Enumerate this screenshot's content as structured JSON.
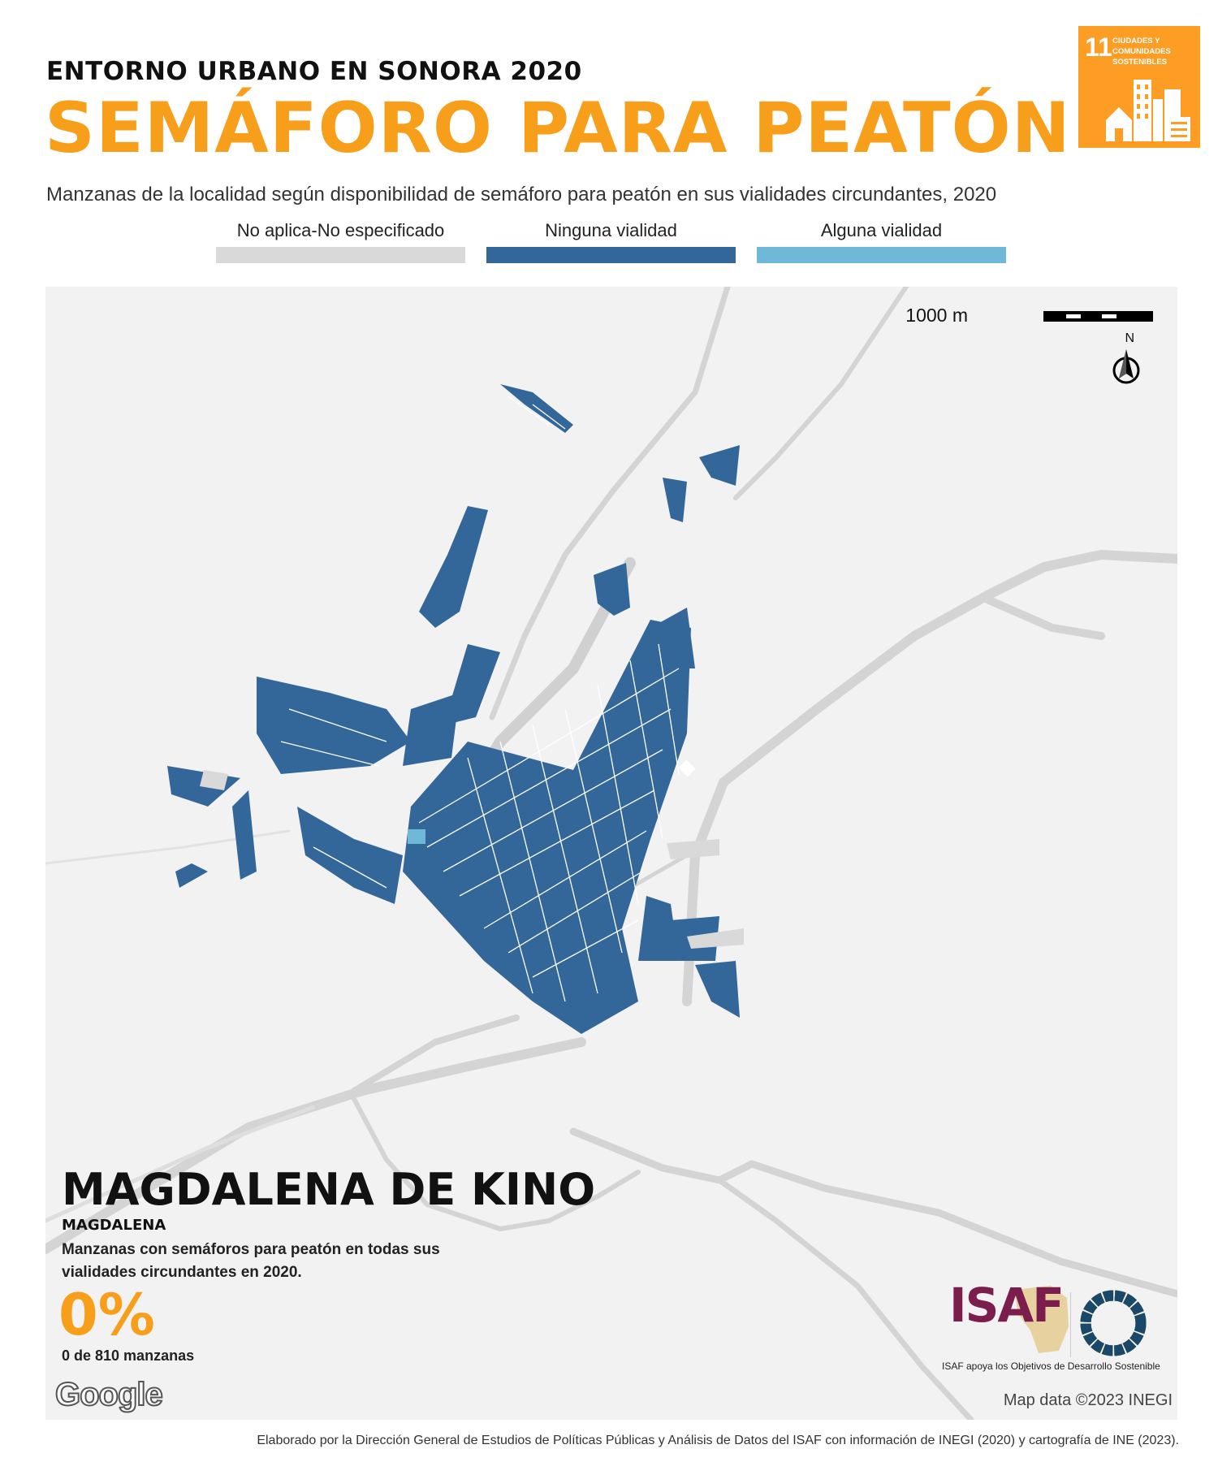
{
  "header": {
    "subtitle": "ENTORNO URBANO EN SONORA 2020",
    "title": "SEMÁFORO PARA PEATÓN"
  },
  "sdg_badge": {
    "number": "11",
    "label": "Ciudades y comunidades sostenibles",
    "color": "#fd9d24"
  },
  "description": "Manzanas de la localidad según disponibilidad de semáforo para peatón en sus vialidades circundantes, 2020",
  "legend": [
    {
      "label": "No aplica-No especificado",
      "color": "#d9d9d9"
    },
    {
      "label": "Ninguna vialidad",
      "color": "#336699"
    },
    {
      "label": "Alguna vialidad",
      "color": "#6fb8d8"
    }
  ],
  "map": {
    "scale_label": "1000 m",
    "north_label": "N",
    "background_color": "#f2f2f2",
    "road_color": "#d4d4d4",
    "google_logo": "Google",
    "attribution": "Map data ©2023 INEGI"
  },
  "locality": {
    "name": "MAGDALENA DE KINO",
    "municipality": "MAGDALENA",
    "indicator_text": "Manzanas con semáforos para peatón en todas sus vialidades circundantes en 2020.",
    "indicator_value": "0%",
    "indicator_count": "0 de 810 manzanas"
  },
  "logos": {
    "isaf": "ISAF",
    "isaf_caption": "ISAF apoya los Objetivos de Desarrollo Sostenible"
  },
  "footer": "Elaborado por la Dirección General de Estudios de Políticas Públicas y Análisis de Datos del ISAF con información de INEGI (2020) y cartografía de INE (2023)."
}
